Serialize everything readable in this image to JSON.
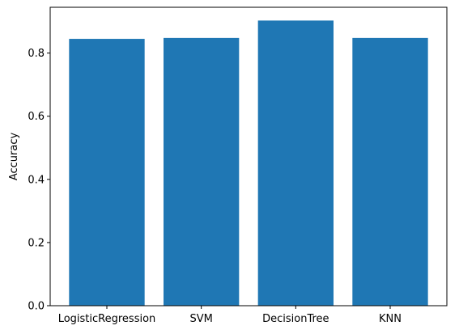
{
  "chart_data": {
    "type": "bar",
    "title": "",
    "xlabel": "",
    "ylabel": "Accuracy",
    "categories": [
      "LogisticRegression",
      "SVM",
      "DecisionTree",
      "KNN"
    ],
    "values": [
      0.845,
      0.848,
      0.903,
      0.848
    ],
    "ylim": [
      0,
      0.945
    ],
    "yticks": [
      0.0,
      0.2,
      0.4,
      0.6,
      0.8
    ],
    "ytick_labels": [
      "0.0",
      "0.2",
      "0.4",
      "0.6",
      "0.8"
    ],
    "grid": false,
    "legend": "none",
    "colors": {
      "bar": "#1f77b4",
      "axis": "#000000",
      "background": "#ffffff"
    }
  }
}
